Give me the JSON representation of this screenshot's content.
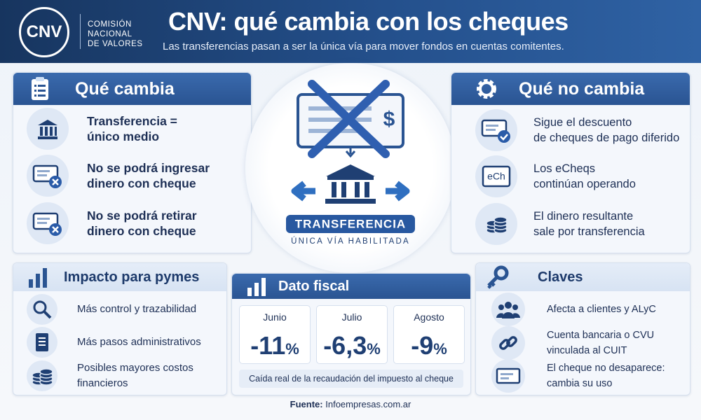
{
  "header": {
    "logo": "CNV",
    "org_lines": [
      "COMISIÓN",
      "NACIONAL",
      "DE VALORES"
    ],
    "title": "CNV: qué cambia con los cheques",
    "subtitle": "Las transferencias pasan a ser la única vía para mover fondos en cuentas comitentes."
  },
  "que_cambia": {
    "title": "Qué cambia",
    "items": [
      [
        "Transferencia =",
        "único medio"
      ],
      [
        "No se podrá ingresar",
        "dinero con cheque"
      ],
      [
        "No se podrá retirar",
        "dinero con cheque"
      ]
    ]
  },
  "center": {
    "currency": "$",
    "label": "TRANSFERENCIA",
    "sublabel": "ÚNICA VÍA HABILITADA"
  },
  "que_no_cambia": {
    "title": "Qué no cambia",
    "icon_text": "eCh",
    "items": [
      [
        "Sigue el descuento",
        "de cheques de pago diferido"
      ],
      [
        "Los eCheqs",
        "continúan operando"
      ],
      [
        "El dinero resultante",
        "sale por transferencia"
      ]
    ]
  },
  "impacto": {
    "title": "Impacto para pymes",
    "items": [
      [
        "Más control y trazabilidad"
      ],
      [
        "Más pasos administrativos"
      ],
      [
        "Posibles mayores costos",
        "financieros"
      ]
    ]
  },
  "dato_fiscal": {
    "title": "Dato fiscal",
    "cards": [
      {
        "month": "Junio",
        "value": "-11",
        "unit": "%"
      },
      {
        "month": "Julio",
        "value": "-6,3",
        "unit": "%"
      },
      {
        "month": "Agosto",
        "value": "-9",
        "unit": "%"
      }
    ],
    "caption": "Caída real de la recaudación del impuesto al cheque"
  },
  "claves": {
    "title": "Claves",
    "items": [
      [
        "Afecta a clientes y ALyC"
      ],
      [
        "Cuenta bancaria o CVU",
        "vinculada al CUIT"
      ],
      [
        "El cheque no desaparece:",
        "cambia su uso"
      ]
    ]
  },
  "source": {
    "label": "Fuente:",
    "text": "Infoempresas.com.ar"
  }
}
